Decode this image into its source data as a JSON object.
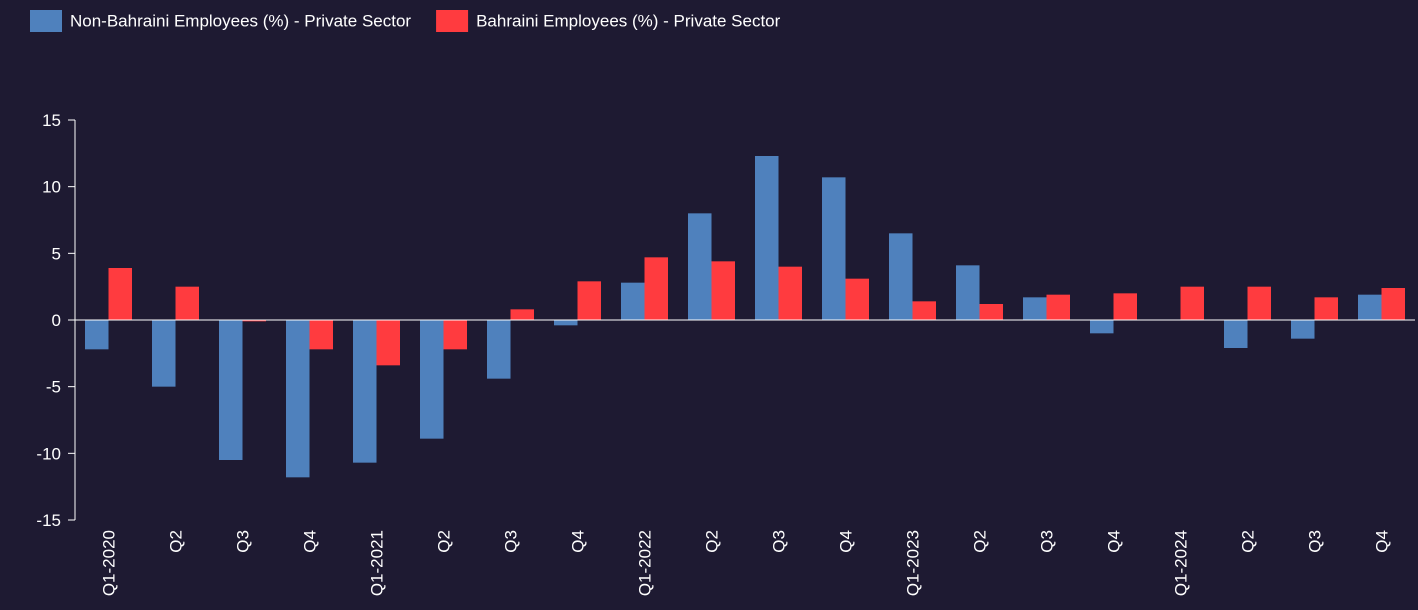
{
  "chart_data": {
    "type": "bar",
    "categories": [
      "Q1-2020",
      "Q2",
      "Q3",
      "Q4",
      "Q1-2021",
      "Q2",
      "Q3",
      "Q4",
      "Q1-2022",
      "Q2",
      "Q3",
      "Q4",
      "Q1-2023",
      "Q2",
      "Q3",
      "Q4",
      "Q1-2024",
      "Q2",
      "Q3",
      "Q4"
    ],
    "series": [
      {
        "name": "Non-Bahraini Employees (%) - Private Sector",
        "color": "#4f81bd",
        "values": [
          -2.2,
          -5.0,
          -10.5,
          -11.8,
          -10.7,
          -8.9,
          -4.4,
          -0.4,
          2.8,
          8.0,
          12.3,
          10.7,
          6.5,
          4.1,
          1.7,
          -1.0,
          0,
          -2.1,
          -1.4,
          1.9
        ]
      },
      {
        "name": "Bahraini Employees (%) - Private Sector",
        "color": "#ff3b3f",
        "values": [
          3.9,
          2.5,
          -0.1,
          -2.2,
          -3.4,
          -2.2,
          0.8,
          2.9,
          4.7,
          4.4,
          4.0,
          3.1,
          1.4,
          1.2,
          1.9,
          2.0,
          2.5,
          2.5,
          1.7,
          2.4
        ]
      }
    ],
    "ylim": [
      -15,
      15
    ],
    "yticks": [
      -15,
      -10,
      -5,
      0,
      5,
      10,
      15
    ],
    "legend": "top-left"
  }
}
